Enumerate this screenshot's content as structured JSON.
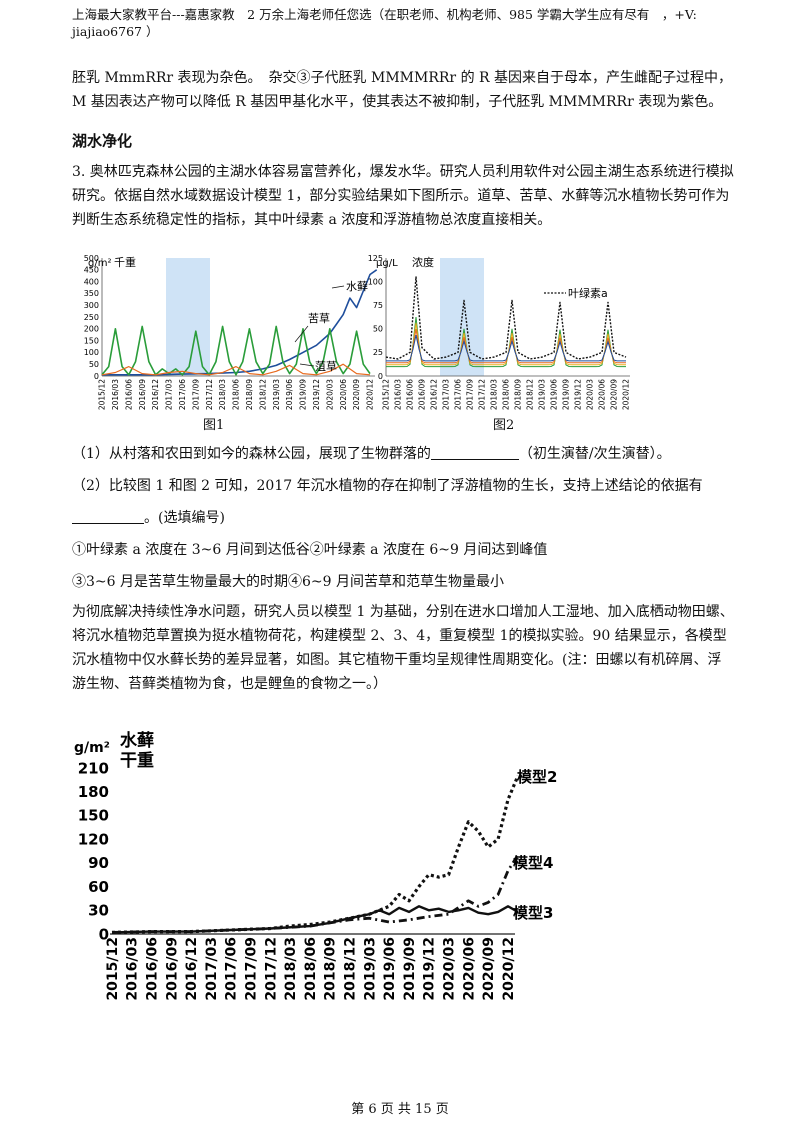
{
  "header": {
    "text": "上海最大家教平台---嘉惠家教　2 万余上海老师任您选（在职老师、机构老师、985 学霸大学生应有尽有　，+V: jiajiao6767 ）"
  },
  "prev_para": "胚乳 MmmRRr 表现为杂色。　杂交③子代胚乳 MMMMRRr 的 R 基因来自于母本，产生雌配子过程中，M 基因表达产物可以降低 R 基因甲基化水平，使其表达不被抑制，子代胚乳 MMMMRRr 表现为紫色。",
  "section_title": "湖水净化",
  "q3_intro": "3. 奥林匹克森林公园的主湖水体容易富营养化，爆发水华。研究人员利用软件对公园主湖生态系统进行模拟研究。依据自然水域数据设计模型 1，部分实验结果如下图所示。道草、苦草、水藓等沉水植物长势可作为判断生态系统稳定性的指标，其中叶绿素 a 浓度和浮游植物总浓度直接相关。",
  "fig1": {
    "caption": "图1",
    "ylabel_unit": "g/m²",
    "ylabel": "千重",
    "labels": [
      "水藓",
      "苦草",
      "菹草"
    ]
  },
  "fig2": {
    "caption": "图2",
    "ylabel_unit": "μg/L",
    "ylabel": "浓度",
    "legend": "叶绿素a"
  },
  "q1": {
    "text": "（1）从村落和农田到如今的森林公园，展现了生物群落的",
    "suffix": "（初生演替/次生演替）。"
  },
  "q2": {
    "text": "（2）比较图 1 和图 2 可知，2017 年沉水植物的存在抑制了浮游植物的生长，支持上述结论的依据有",
    "suffix": "。(选填编号)"
  },
  "options": {
    "a": "①叶绿素 a 浓度在 3~6 月间到达低谷②叶绿素 a 浓度在 6~9 月间达到峰值",
    "b": "③3~6 月是苦草生物量最大的时期④6~9 月间苦草和范草生物量最小"
  },
  "q3_para": "为彻底解决持续性净水问题，研究人员以模型 1 为基础，分别在进水口增加人工湿地、加入底栖动物田螺、将沉水植物范草置换为挺水植物荷花，构建模型 2、3、4，重复模型 1的模拟实验。90 结果显示，各模型沉水植物中仅水藓长势的差异显著，如图。其它植物干重均呈规律性周期变化。(注：田螺以有机碎屑、浮游生物、苔藓类植物为食，也是鲤鱼的食物之一。）",
  "fig3": {
    "ylabel_unit": "g/m²",
    "ylabel_line1": "水藓",
    "ylabel_line2": "干重",
    "series_labels": [
      "模型2",
      "模型4",
      "模型3"
    ]
  },
  "footer": "第 6 页 共 15 页",
  "chart_data": [
    {
      "type": "line",
      "title": "图1",
      "ylabel": "g/m² 千重",
      "ylim": [
        0,
        500
      ],
      "yticks": [
        0,
        50,
        100,
        150,
        200,
        250,
        300,
        350,
        400,
        450,
        500
      ],
      "categories": [
        "2015/12",
        "2016/03",
        "2016/06",
        "2016/09",
        "2016/12",
        "2017/03",
        "2017/06",
        "2017/09",
        "2017/12",
        "2018/03",
        "2018/06",
        "2018/09",
        "2018/12",
        "2019/03",
        "2019/06",
        "2019/09",
        "2019/12",
        "2020/03",
        "2020/06",
        "2020/09",
        "2020/12"
      ],
      "highlight": [
        "2017/01",
        "2017/12"
      ],
      "series": [
        {
          "name": "水藓",
          "color": "#1f4e9c",
          "x": [
            0,
            2,
            4,
            6,
            8,
            10,
            11,
            12,
            13,
            14,
            15,
            16,
            17,
            17.5,
            18,
            18.5,
            19,
            19.5,
            20,
            20.5
          ],
          "y": [
            5,
            5,
            5,
            8,
            10,
            15,
            20,
            30,
            45,
            70,
            100,
            130,
            180,
            220,
            260,
            330,
            290,
            360,
            430,
            450
          ]
        },
        {
          "name": "苦草",
          "color": "#2a9d3a",
          "x": [
            0,
            0.5,
            1,
            1.5,
            2,
            2.5,
            3,
            3.5,
            4,
            4.5,
            5,
            5.5,
            6,
            6.5,
            7,
            7.5,
            8,
            8.5,
            9,
            9.5,
            10,
            10.5,
            11,
            11.5,
            12,
            12.5,
            13,
            13.5,
            14,
            14.5,
            15,
            15.5,
            16,
            16.5,
            17,
            17.5,
            18,
            18.5,
            19,
            19.5,
            20
          ],
          "y": [
            5,
            40,
            200,
            40,
            5,
            60,
            210,
            60,
            5,
            30,
            10,
            30,
            5,
            40,
            190,
            40,
            5,
            60,
            210,
            60,
            5,
            60,
            200,
            60,
            10,
            50,
            210,
            60,
            10,
            50,
            200,
            60,
            10,
            60,
            200,
            60,
            10,
            50,
            190,
            50,
            10
          ]
        },
        {
          "name": "菹草",
          "color": "#e86a1e",
          "x": [
            0,
            1,
            2,
            3,
            4,
            5,
            6,
            7,
            8,
            9,
            10,
            11,
            12,
            13,
            14,
            15,
            16,
            17,
            18,
            19,
            20
          ],
          "y": [
            5,
            15,
            40,
            10,
            5,
            15,
            20,
            10,
            5,
            15,
            40,
            10,
            5,
            20,
            45,
            10,
            5,
            20,
            50,
            10,
            5
          ]
        }
      ]
    },
    {
      "type": "line",
      "title": "图2",
      "ylabel": "μg/L 浓度",
      "ylim": [
        0,
        125
      ],
      "yticks": [
        0,
        25,
        50,
        75,
        100,
        125
      ],
      "categories": [
        "2015/12",
        "2016/03",
        "2016/06",
        "2016/09",
        "2016/12",
        "2017/03",
        "2017/06",
        "2017/09",
        "2017/12",
        "2018/03",
        "2018/06",
        "2018/09",
        "2018/12",
        "2019/03",
        "2019/06",
        "2019/09",
        "2019/12",
        "2020/03",
        "2020/06",
        "2020/09",
        "2020/12"
      ],
      "highlight": [
        "2017/01",
        "2017/12"
      ],
      "series": [
        {
          "name": "叶绿素a",
          "color": "#111111",
          "x": [
            0,
            1,
            2,
            2.5,
            3,
            4,
            5,
            6,
            6.5,
            7,
            8,
            9,
            10,
            10.5,
            11,
            12,
            13,
            14,
            14.5,
            15,
            16,
            17,
            18,
            18.5,
            19,
            20
          ],
          "y": [
            20,
            18,
            25,
            105,
            30,
            18,
            20,
            25,
            80,
            25,
            18,
            20,
            25,
            80,
            25,
            18,
            20,
            25,
            78,
            25,
            18,
            20,
            25,
            78,
            25,
            20
          ]
        }
      ]
    },
    {
      "type": "line",
      "title": "",
      "ylabel": "g/m² 水藓 干重",
      "ylim": [
        0,
        210
      ],
      "yticks": [
        0,
        30,
        60,
        90,
        120,
        150,
        180,
        210
      ],
      "categories": [
        "2015/12",
        "2016/03",
        "2016/06",
        "2016/09",
        "2016/12",
        "2017/03",
        "2017/06",
        "2017/09",
        "2017/12",
        "2018/03",
        "2018/06",
        "2018/09",
        "2018/12",
        "2019/03",
        "2019/06",
        "2019/09",
        "2019/12",
        "2020/03",
        "2020/06",
        "2020/09",
        "2020/12"
      ],
      "series": [
        {
          "name": "模型2",
          "x": [
            0,
            2,
            4,
            6,
            8,
            9,
            10,
            11,
            12,
            13,
            14,
            14.5,
            15,
            15.5,
            16,
            16.5,
            17,
            17.5,
            18,
            18.5,
            19,
            19.5,
            20,
            20.5
          ],
          "y": [
            2,
            3,
            3,
            5,
            7,
            10,
            12,
            15,
            20,
            25,
            35,
            50,
            42,
            60,
            75,
            72,
            75,
            110,
            142,
            130,
            110,
            120,
            170,
            200
          ]
        },
        {
          "name": "模型4",
          "x": [
            0,
            2,
            4,
            6,
            8,
            10,
            11,
            12,
            13,
            14,
            15,
            16,
            17,
            18,
            18.5,
            19,
            19.5,
            20,
            20.5
          ],
          "y": [
            2,
            3,
            3,
            5,
            7,
            10,
            14,
            18,
            20,
            15,
            18,
            22,
            25,
            42,
            35,
            40,
            50,
            80,
            100
          ]
        },
        {
          "name": "模型3",
          "x": [
            0,
            2,
            4,
            6,
            8,
            10,
            11,
            12,
            13,
            13.5,
            14,
            14.5,
            15,
            15.5,
            16,
            16.5,
            17,
            17.5,
            18,
            18.5,
            19,
            19.5,
            20,
            20.5
          ],
          "y": [
            2,
            3,
            3,
            5,
            7,
            10,
            14,
            20,
            25,
            30,
            25,
            33,
            28,
            35,
            30,
            32,
            28,
            30,
            33,
            27,
            25,
            28,
            35,
            28
          ]
        }
      ]
    }
  ]
}
